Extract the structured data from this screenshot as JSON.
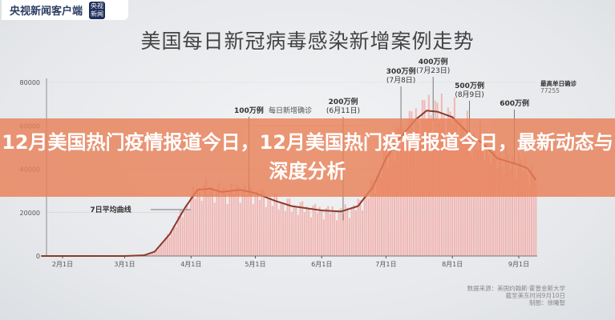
{
  "brand": {
    "name": "央视新闻客户端",
    "badge": "央视新闻"
  },
  "headline": "12月美国热门疫情报道今日，12月美国热门疫情报道今日，最新动态与深度分析",
  "source": [
    "数据来源：美国约翰斯·霍普金斯大学",
    "截至美东时间9月10日",
    "制图：徐曦智"
  ],
  "colors": {
    "bars": "#f2a9a4",
    "line": "#8b3a2c",
    "overlay": "#e88058"
  },
  "chart_data": {
    "type": "bar",
    "title": "美国每日新冠病毒感染新增案例走势",
    "xlabel": "",
    "ylabel": "",
    "ylim": [
      0,
      80000
    ],
    "yticks": [
      "0",
      "20000",
      "40000",
      "60000",
      "80000"
    ],
    "xticks": [
      "2月1日",
      "3月1日",
      "4月1日",
      "5月1日",
      "6月1日",
      "7月1日",
      "8月1日",
      "9月1日"
    ],
    "grid": false,
    "series": [
      {
        "name": "每日新增确诊",
        "type": "bar"
      },
      {
        "name": "7日平均曲线",
        "type": "line",
        "points": [
          [
            "01-22",
            0
          ],
          [
            "03-01",
            0
          ],
          [
            "03-10",
            300
          ],
          [
            "03-15",
            2000
          ],
          [
            "03-22",
            10000
          ],
          [
            "03-29",
            22000
          ],
          [
            "04-04",
            30500
          ],
          [
            "04-10",
            31000
          ],
          [
            "04-15",
            29500
          ],
          [
            "04-24",
            30500
          ],
          [
            "05-01",
            29000
          ],
          [
            "05-10",
            25500
          ],
          [
            "05-18",
            23000
          ],
          [
            "06-01",
            21000
          ],
          [
            "06-10",
            20500
          ],
          [
            "06-18",
            23000
          ],
          [
            "06-25",
            32000
          ],
          [
            "07-01",
            45000
          ],
          [
            "07-08",
            55000
          ],
          [
            "07-15",
            63000
          ],
          [
            "07-20",
            67000
          ],
          [
            "07-25",
            66500
          ],
          [
            "08-01",
            64000
          ],
          [
            "08-08",
            57000
          ],
          [
            "08-15",
            52000
          ],
          [
            "08-22",
            45000
          ],
          [
            "09-01",
            42000
          ],
          [
            "09-05",
            40500
          ],
          [
            "09-09",
            35000
          ]
        ]
      }
    ],
    "reference": {
      "label": "最高单日确诊",
      "value": "77255"
    },
    "annotations": [
      {
        "label": "100万例",
        "date": "",
        "at": "04-28"
      },
      {
        "label": "200万例",
        "date": "(6月11日)",
        "at": "06-11"
      },
      {
        "label": "300万例",
        "date": "(7月8日)",
        "at": "07-08"
      },
      {
        "label": "400万例",
        "date": "(7月23日)",
        "at": "07-23"
      },
      {
        "label": "500万例",
        "date": "(8月9日)",
        "at": "08-09"
      },
      {
        "label": "600万例",
        "date": "",
        "at": "08-30"
      }
    ]
  }
}
